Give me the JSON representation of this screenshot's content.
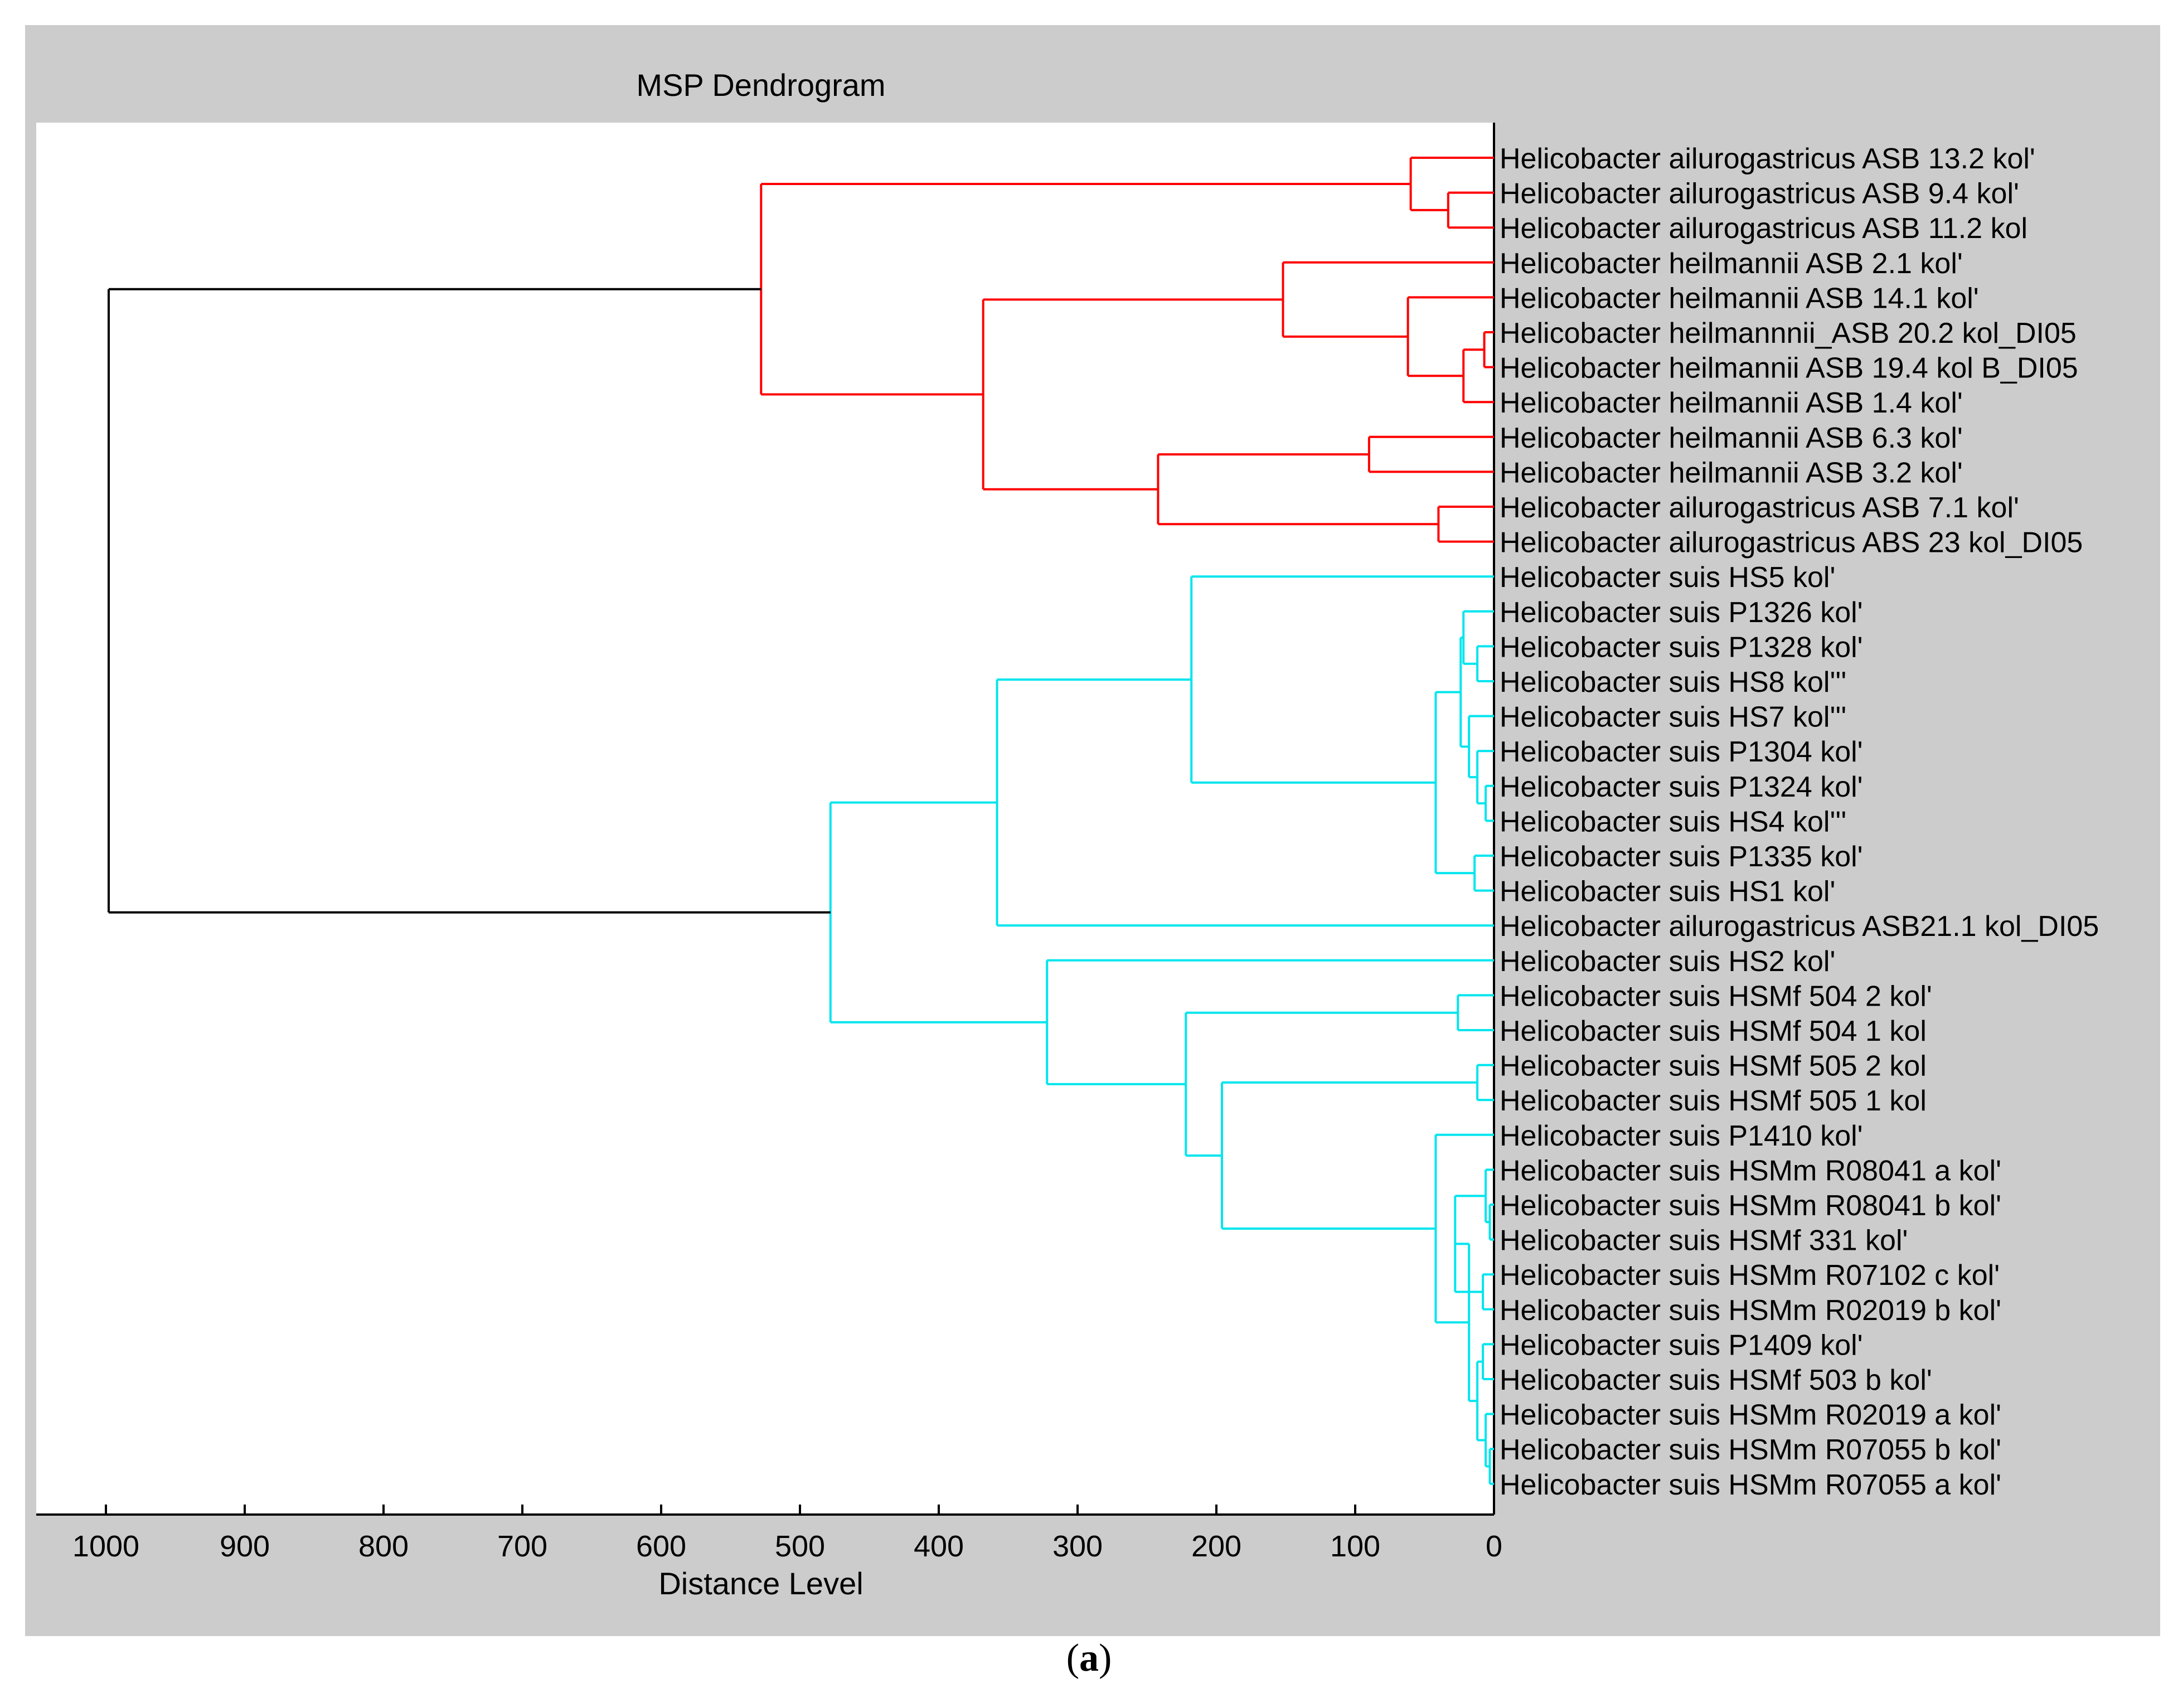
{
  "chart_data": {
    "type": "dendrogram",
    "title": "MSP Dendrogram",
    "xlabel": "Distance Level",
    "xlim": [
      1050,
      0
    ],
    "x_ticks": [
      1000,
      900,
      800,
      700,
      600,
      500,
      400,
      300,
      200,
      100,
      0
    ],
    "leaves": [
      "Helicobacter ailurogastricus ASB 13.2 kol'",
      "Helicobacter ailurogastricus ASB 9.4 kol'",
      "Helicobacter ailurogastricus ASB 11.2 kol",
      "Helicobacter heilmannii ASB 2.1 kol'",
      "Helicobacter heilmannii ASB 14.1 kol'",
      "Helicobacter heilmannnii_ASB 20.2 kol_DI05",
      "Helicobacter heilmannii ASB 19.4 kol B_DI05",
      "Helicobacter heilmannii ASB 1.4 kol'",
      "Helicobacter heilmannii ASB 6.3 kol'",
      "Helicobacter heilmannii ASB 3.2 kol'",
      "Helicobacter ailurogastricus ASB 7.1 kol'",
      "Helicobacter ailurogastricus ABS 23 kol_DI05",
      "Helicobacter suis HS5 kol'",
      "Helicobacter suis P1326 kol'",
      "Helicobacter suis P1328 kol'",
      "Helicobacter suis HS8 kol'''",
      "Helicobacter suis HS7 kol'''",
      "Helicobacter suis P1304 kol'",
      "Helicobacter suis P1324 kol'",
      "Helicobacter suis HS4 kol'''",
      "Helicobacter suis P1335 kol'",
      "Helicobacter suis HS1 kol'",
      "Helicobacter ailurogastricus ASB21.1 kol_DI05",
      "Helicobacter suis HS2 kol'",
      "Helicobacter suis HSMf 504 2 kol'",
      "Helicobacter suis HSMf 504 1 kol",
      "Helicobacter suis HSMf 505 2 kol",
      "Helicobacter suis HSMf 505 1 kol",
      "Helicobacter suis P1410 kol'",
      "Helicobacter suis HSMm R08041 a kol'",
      "Helicobacter suis HSMm R08041 b kol'",
      "Helicobacter suis HSMf 331 kol'",
      "Helicobacter suis HSMm R07102 c kol'",
      "Helicobacter suis HSMm R02019 b kol'",
      "Helicobacter suis P1409 kol'",
      "Helicobacter suis HSMf 503  b kol'",
      "Helicobacter suis HSMm R02019 a kol'",
      "Helicobacter suis HSMm R07055 b kol'",
      "Helicobacter suis HSMm R07055 a kol'"
    ],
    "merges": [
      {
        "a": "L1",
        "b": "L2",
        "d": 33,
        "color": "red"
      },
      {
        "a": "L0",
        "b": "N0",
        "d": 60,
        "color": "red"
      },
      {
        "a": "L5",
        "b": "L6",
        "d": 7,
        "color": "red"
      },
      {
        "a": "N2",
        "b": "L7",
        "d": 22,
        "color": "red"
      },
      {
        "a": "L4",
        "b": "N3",
        "d": 62,
        "color": "red"
      },
      {
        "a": "L3",
        "b": "N4",
        "d": 152,
        "color": "red"
      },
      {
        "a": "L8",
        "b": "L9",
        "d": 90,
        "color": "red"
      },
      {
        "a": "L10",
        "b": "L11",
        "d": 40,
        "color": "red"
      },
      {
        "a": "N6",
        "b": "N7",
        "d": 242,
        "color": "red"
      },
      {
        "a": "N5",
        "b": "N8",
        "d": 368,
        "color": "red"
      },
      {
        "a": "N1",
        "b": "N9",
        "d": 528,
        "color": "red"
      },
      {
        "a": "L14",
        "b": "L15",
        "d": 12,
        "color": "cyan"
      },
      {
        "a": "L13",
        "b": "N11",
        "d": 22,
        "color": "cyan"
      },
      {
        "a": "L18",
        "b": "L19",
        "d": 6,
        "color": "cyan"
      },
      {
        "a": "L17",
        "b": "N13",
        "d": 12,
        "color": "cyan"
      },
      {
        "a": "L16",
        "b": "N14",
        "d": 18,
        "color": "cyan"
      },
      {
        "a": "N12",
        "b": "N15",
        "d": 24,
        "color": "cyan"
      },
      {
        "a": "L20",
        "b": "L21",
        "d": 14,
        "color": "cyan"
      },
      {
        "a": "N16",
        "b": "N17",
        "d": 42,
        "color": "cyan"
      },
      {
        "a": "L12",
        "b": "N18",
        "d": 218,
        "color": "cyan"
      },
      {
        "a": "N19",
        "b": "L22",
        "d": 358,
        "color": "cyan"
      },
      {
        "a": "L24",
        "b": "L25",
        "d": 26,
        "color": "cyan"
      },
      {
        "a": "L26",
        "b": "L27",
        "d": 12,
        "color": "cyan"
      },
      {
        "a": "L30",
        "b": "L31",
        "d": 3,
        "color": "cyan"
      },
      {
        "a": "L29",
        "b": "N23",
        "d": 6,
        "color": "cyan"
      },
      {
        "a": "L32",
        "b": "L33",
        "d": 8,
        "color": "cyan"
      },
      {
        "a": "N24",
        "b": "N25",
        "d": 28,
        "color": "cyan"
      },
      {
        "a": "L34",
        "b": "L35",
        "d": 8,
        "color": "cyan"
      },
      {
        "a": "L37",
        "b": "L38",
        "d": 3,
        "color": "cyan"
      },
      {
        "a": "L36",
        "b": "N28",
        "d": 6,
        "color": "cyan"
      },
      {
        "a": "N27",
        "b": "N29",
        "d": 12,
        "color": "cyan"
      },
      {
        "a": "N26",
        "b": "N30",
        "d": 18,
        "color": "cyan"
      },
      {
        "a": "L28",
        "b": "N31",
        "d": 42,
        "color": "cyan"
      },
      {
        "a": "N22",
        "b": "N32",
        "d": 196,
        "color": "cyan"
      },
      {
        "a": "N21",
        "b": "N33",
        "d": 222,
        "color": "cyan"
      },
      {
        "a": "L23",
        "b": "N34",
        "d": 322,
        "color": "cyan"
      },
      {
        "a": "N20",
        "b": "N35",
        "d": 478,
        "color": "cyan"
      },
      {
        "a": "N10",
        "b": "N36",
        "d": 998,
        "color": "black"
      }
    ],
    "colors": {
      "red": "#ff0000",
      "cyan": "#00e5ee",
      "black": "#000000"
    }
  },
  "caption": "a"
}
